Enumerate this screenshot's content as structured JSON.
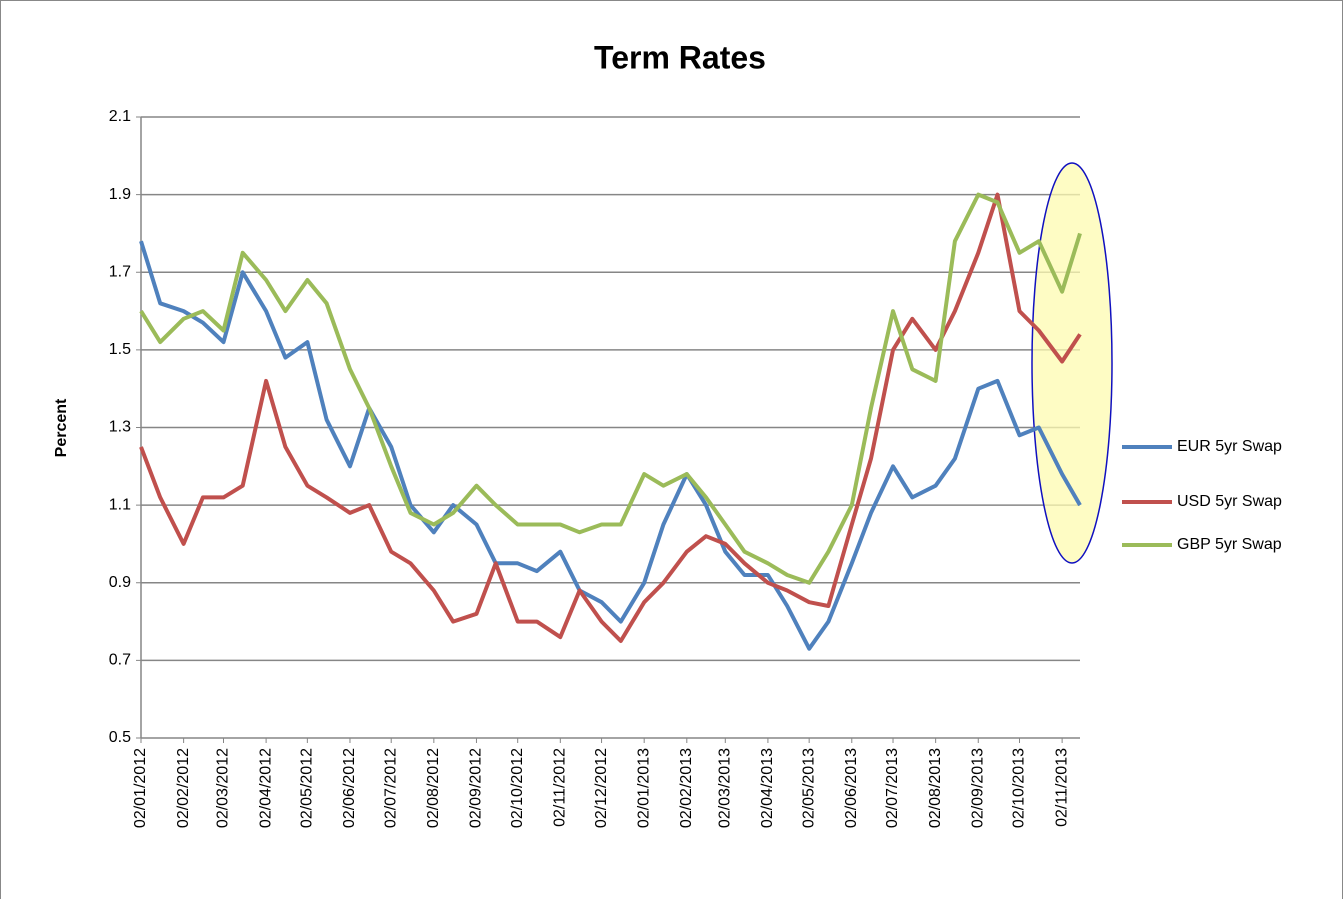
{
  "chart_data": {
    "type": "line",
    "title": "Term Rates",
    "y_label": "Percent",
    "x": [
      "02/01/2012",
      "16/01/2012",
      "02/02/2012",
      "16/02/2012",
      "02/03/2012",
      "16/03/2012",
      "02/04/2012",
      "16/04/2012",
      "02/05/2012",
      "16/05/2012",
      "02/06/2012",
      "16/06/2012",
      "02/07/2012",
      "16/07/2012",
      "02/08/2012",
      "16/08/2012",
      "02/09/2012",
      "16/09/2012",
      "02/10/2012",
      "16/10/2012",
      "02/11/2012",
      "16/11/2012",
      "02/12/2012",
      "16/12/2012",
      "02/01/2013",
      "16/01/2013",
      "02/02/2013",
      "16/02/2013",
      "02/03/2013",
      "16/03/2013",
      "02/04/2013",
      "16/04/2013",
      "02/05/2013",
      "16/05/2013",
      "02/06/2013",
      "16/06/2013",
      "02/07/2013",
      "16/07/2013",
      "02/08/2013",
      "16/08/2013",
      "02/09/2013",
      "16/09/2013",
      "02/10/2013",
      "16/10/2013",
      "02/11/2013",
      "15/11/2013"
    ],
    "series": [
      {
        "name": "EUR 5yr Swap",
        "color": "#4f81bd",
        "values": [
          1.78,
          1.62,
          1.6,
          1.57,
          1.52,
          1.7,
          1.6,
          1.48,
          1.52,
          1.32,
          1.2,
          1.35,
          1.25,
          1.1,
          1.03,
          1.1,
          1.05,
          0.95,
          0.95,
          0.93,
          0.98,
          0.88,
          0.85,
          0.8,
          0.9,
          1.05,
          1.18,
          1.1,
          0.98,
          0.92,
          0.92,
          0.84,
          0.73,
          0.8,
          0.95,
          1.08,
          1.2,
          1.12,
          1.15,
          1.22,
          1.4,
          1.42,
          1.28,
          1.3,
          1.18,
          1.1
        ]
      },
      {
        "name": "USD 5yr Swap",
        "color": "#c0504d",
        "values": [
          1.25,
          1.12,
          1.0,
          1.12,
          1.12,
          1.15,
          1.42,
          1.25,
          1.15,
          1.12,
          1.08,
          1.1,
          0.98,
          0.95,
          0.88,
          0.8,
          0.82,
          0.95,
          0.8,
          0.8,
          0.76,
          0.88,
          0.8,
          0.75,
          0.85,
          0.9,
          0.98,
          1.02,
          1.0,
          0.95,
          0.9,
          0.88,
          0.85,
          0.84,
          1.05,
          1.22,
          1.5,
          1.58,
          1.5,
          1.6,
          1.75,
          1.9,
          1.6,
          1.55,
          1.47,
          1.54
        ]
      },
      {
        "name": "GBP 5yr Swap",
        "color": "#9bbb59",
        "values": [
          1.6,
          1.52,
          1.58,
          1.6,
          1.55,
          1.75,
          1.68,
          1.6,
          1.68,
          1.62,
          1.45,
          1.35,
          1.2,
          1.08,
          1.05,
          1.08,
          1.15,
          1.1,
          1.05,
          1.05,
          1.05,
          1.03,
          1.05,
          1.05,
          1.18,
          1.15,
          1.18,
          1.12,
          1.05,
          0.98,
          0.95,
          0.92,
          0.9,
          0.98,
          1.1,
          1.35,
          1.6,
          1.45,
          1.42,
          1.78,
          1.9,
          1.88,
          1.75,
          1.78,
          1.65,
          1.8
        ]
      }
    ],
    "xlim": [
      "02/01/2012",
      "15/11/2013"
    ],
    "xticks": [
      "02/01/2012",
      "02/02/2012",
      "02/03/2012",
      "02/04/2012",
      "02/05/2012",
      "02/06/2012",
      "02/07/2012",
      "02/08/2012",
      "02/09/2012",
      "02/10/2012",
      "02/11/2012",
      "02/12/2012",
      "02/01/2013",
      "02/02/2013",
      "02/03/2013",
      "02/04/2013",
      "02/05/2013",
      "02/06/2013",
      "02/07/2013",
      "02/08/2013",
      "02/09/2013",
      "02/10/2013",
      "02/11/2013"
    ],
    "ylim": [
      0.5,
      2.1
    ],
    "yticks": [
      0.5,
      0.7,
      0.9,
      1.1,
      1.3,
      1.5,
      1.7,
      1.9,
      2.1
    ],
    "grid": true,
    "legend": "right"
  }
}
